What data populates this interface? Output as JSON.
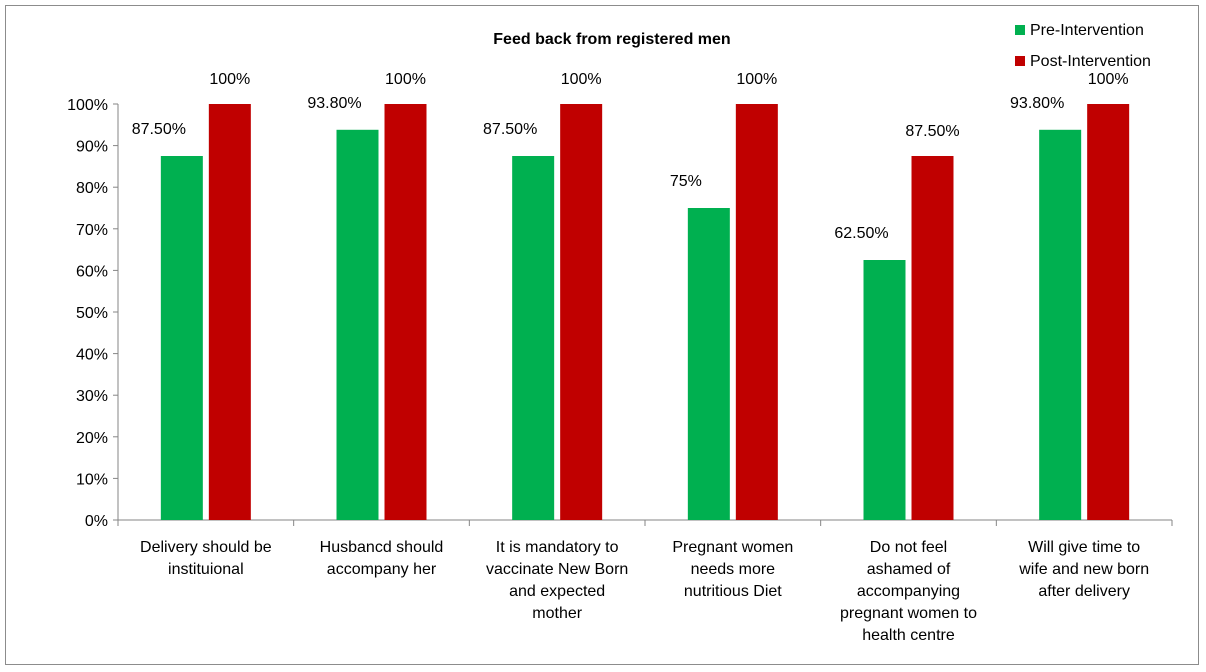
{
  "chart_data": {
    "type": "bar",
    "title": "Feed back from registered men",
    "categories": [
      [
        "Delivery should be",
        "instituional"
      ],
      [
        "Husbancd should",
        "accompany her"
      ],
      [
        "It is mandatory to",
        "vaccinate New Born",
        "and expected",
        "mother"
      ],
      [
        "Pregnant women",
        "needs more",
        "nutritious Diet"
      ],
      [
        "Do not feel",
        "ashamed of",
        "accompanying",
        "pregnant women to",
        "health centre"
      ],
      [
        "Will give time to",
        "wife and new born",
        "after delivery"
      ]
    ],
    "series": [
      {
        "name": "Pre-Intervention",
        "color": "#00b050",
        "values": [
          87.5,
          93.8,
          87.5,
          75,
          62.5,
          93.8
        ],
        "labels": [
          "87.50%",
          "93.80%",
          "87.50%",
          "75%",
          "62.50%",
          "93.80%"
        ]
      },
      {
        "name": "Post-Intervention",
        "color": "#c00000",
        "values": [
          100,
          100,
          100,
          100,
          87.5,
          100
        ],
        "labels": [
          "100%",
          "100%",
          "100%",
          "100%",
          "87.50%",
          "100%"
        ]
      }
    ],
    "y_ticks": [
      "0%",
      "10%",
      "20%",
      "30%",
      "40%",
      "50%",
      "60%",
      "70%",
      "80%",
      "90%",
      "100%"
    ],
    "ylim": [
      0,
      100
    ],
    "grid": false,
    "legend": "top-right"
  }
}
